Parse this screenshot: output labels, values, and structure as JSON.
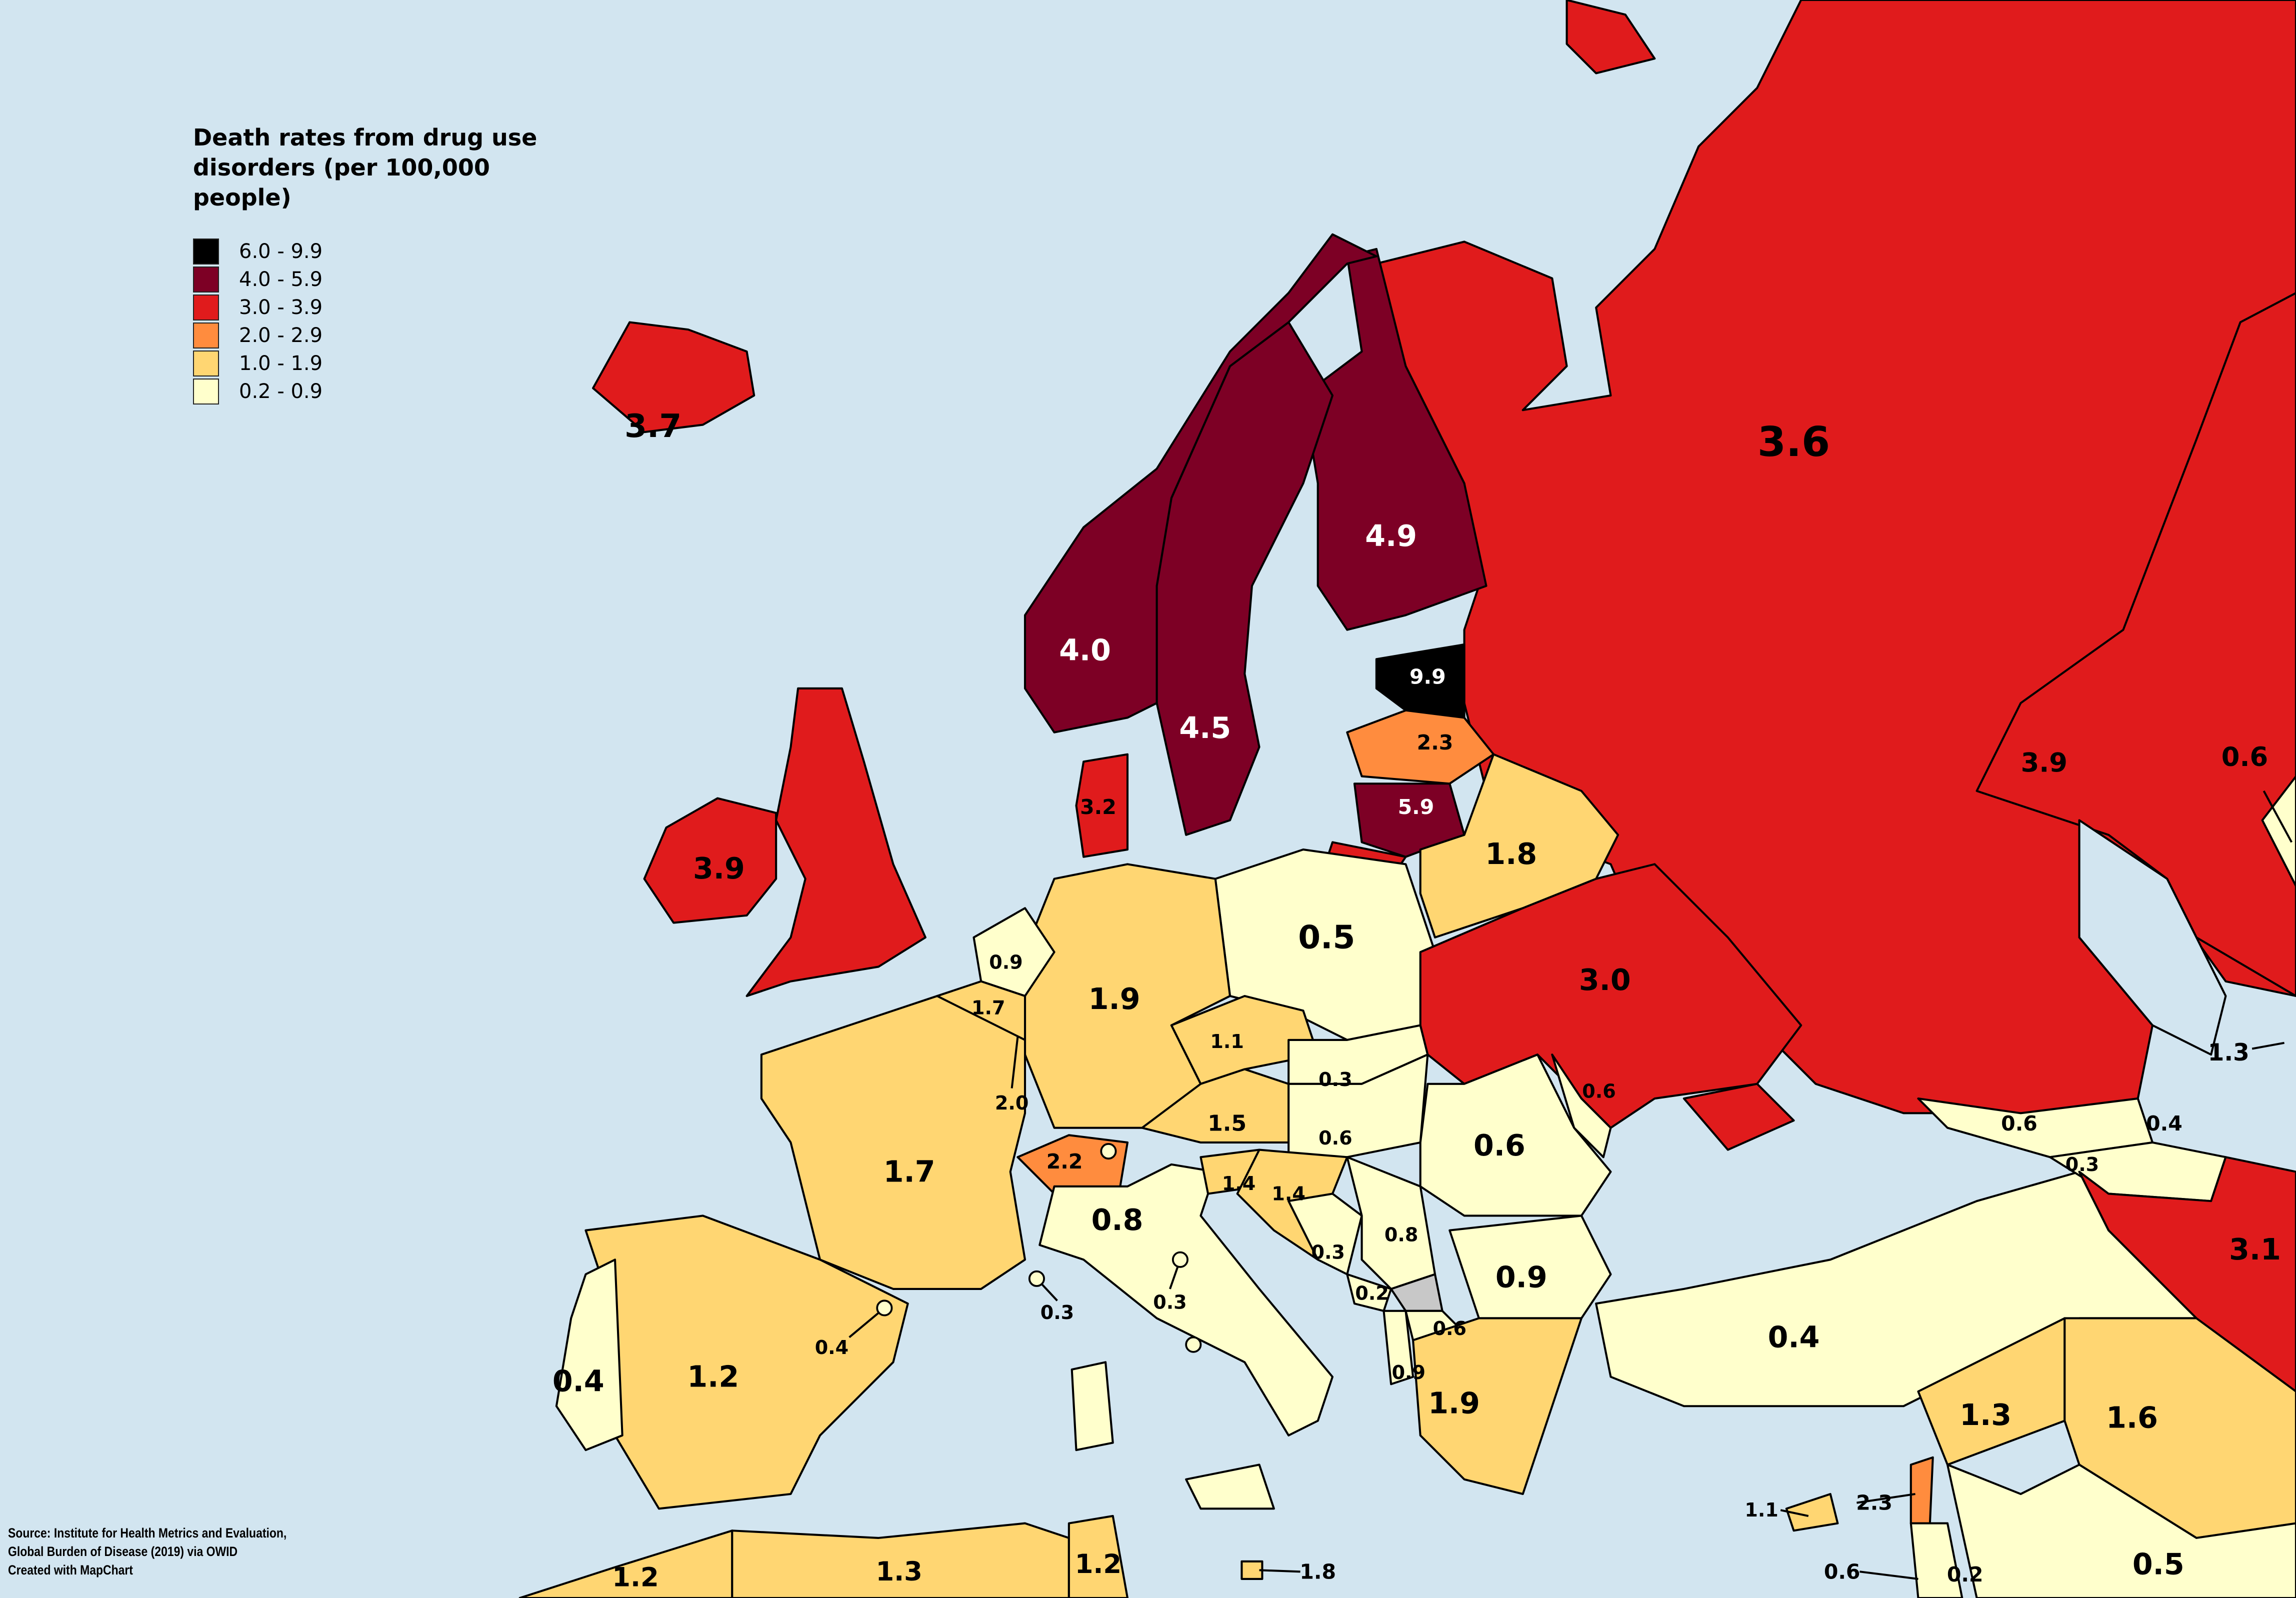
{
  "legend": {
    "title": "Death rates from drug use disorders (per 100,000 people)",
    "items": [
      {
        "label": "6.0 - 9.9",
        "color": "#000000"
      },
      {
        "label": "4.0 - 5.9",
        "color": "#7d0025"
      },
      {
        "label": "3.0 - 3.9",
        "color": "#e01b1c"
      },
      {
        "label": "2.0 - 2.9",
        "color": "#ff8c3e"
      },
      {
        "label": "1.0 - 1.9",
        "color": "#ffd672"
      },
      {
        "label": "0.2 - 0.9",
        "color": "#ffffcc"
      }
    ]
  },
  "colors": {
    "sea": "#d2e5f0",
    "no_data": "#c8c8c8",
    "border": "#000000"
  },
  "source": {
    "line1": "Source: Institute for Health Metrics and Evaluation,",
    "line2": "Global Burden of Disease (2019) via OWID",
    "line3": "Created with MapChart"
  },
  "map_labels": [
    "3.7",
    "4.0",
    "4.5",
    "4.9",
    "9.9",
    "2.3",
    "5.9",
    "3.2",
    "3.9",
    "3.6",
    "3.9",
    "0.6",
    "1.8",
    "0.5",
    "3.0",
    "1.3",
    "0.9",
    "1.7",
    "1.9",
    "1.1",
    "2.0",
    "0.3",
    "0.6",
    "1.5",
    "0.6",
    "0.6",
    "2.2",
    "0.6",
    "0.4",
    "0.3",
    "1.7",
    "1.4",
    "1.4",
    "0.8",
    "0.8",
    "0.3",
    "0.9",
    "3.1",
    "0.2",
    "0.3",
    "0.3",
    "0.4",
    "0.6",
    "0.4",
    "0.4",
    "1.2",
    "0.9",
    "1.3",
    "1.6",
    "1.9",
    "1.1",
    "2.3",
    "1.2",
    "1.3",
    "1.2",
    "1.8",
    "0.6",
    "0.2",
    "0.5"
  ]
}
